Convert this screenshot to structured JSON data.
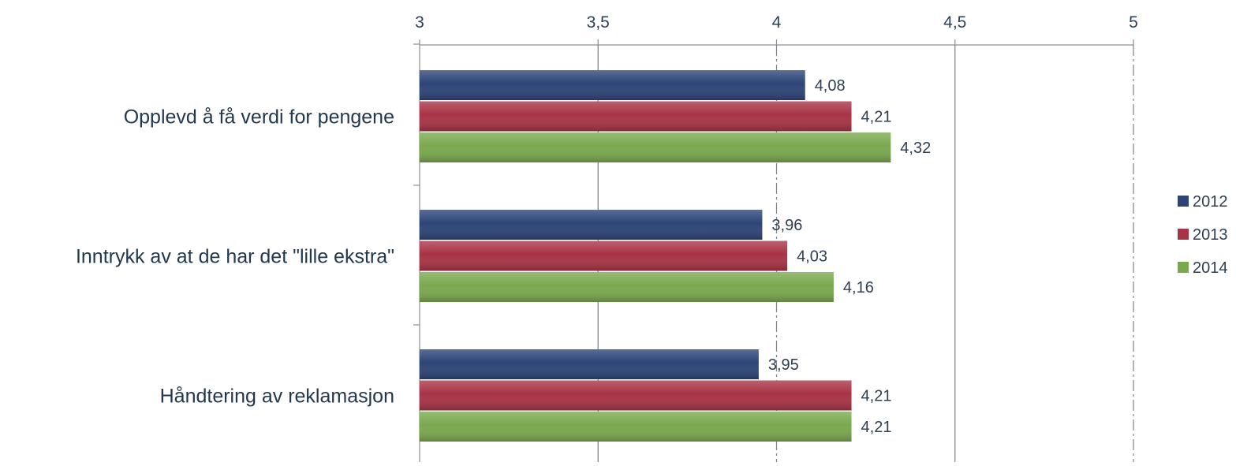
{
  "chart_data": {
    "type": "bar",
    "orientation": "horizontal",
    "title": "",
    "xlabel": "",
    "ylabel": "",
    "xlim": [
      3,
      5
    ],
    "ticks": [
      {
        "value": 3,
        "label": "3"
      },
      {
        "value": 3.5,
        "label": "3,5"
      },
      {
        "value": 4,
        "label": "4"
      },
      {
        "value": 4.5,
        "label": "4,5"
      },
      {
        "value": 5,
        "label": "5"
      }
    ],
    "tick_position": "top",
    "grid": true,
    "legend_position": "right",
    "categories": [
      "Opplevd å få verdi for pengene",
      "Inntrykk av at de har det \"lille ekstra\"",
      "Håndtering av reklamasjon"
    ],
    "series": [
      {
        "name": "2012",
        "color": "#2c4477",
        "values": [
          4.08,
          3.96,
          3.95
        ],
        "labels": [
          "4,08",
          "3,96",
          "3,95"
        ]
      },
      {
        "name": "2013",
        "color": "#a83346",
        "values": [
          4.21,
          4.03,
          4.21
        ],
        "labels": [
          "4,21",
          "4,03",
          "4,21"
        ]
      },
      {
        "name": "2014",
        "color": "#7aa84e",
        "values": [
          4.32,
          4.16,
          4.21
        ],
        "labels": [
          "4,32",
          "4,16",
          "4,21"
        ]
      }
    ]
  }
}
